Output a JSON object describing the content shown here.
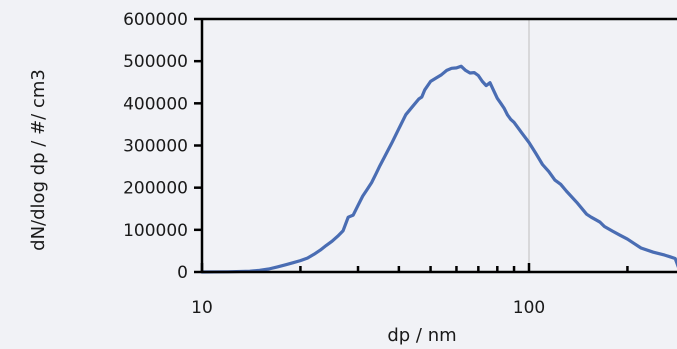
{
  "chart_data": {
    "type": "line",
    "title": "",
    "xlabel": "dp / nm",
    "ylabel": "dN/dlog dp / #/ cm3",
    "x_scale": "log",
    "xlim": [
      10,
      290
    ],
    "ylim": [
      0,
      600000
    ],
    "x_tick_labels": [
      "10",
      "100"
    ],
    "y_tick_labels": [
      "0",
      "100000",
      "200000",
      "300000",
      "400000",
      "500000",
      "600000"
    ],
    "grid": "vertical line at x = 100",
    "legend": "none",
    "colors": {
      "series": "#4a6db3",
      "background": "#f1f2f6",
      "axis": "#000000",
      "grid": "#c8c8c8"
    },
    "series": [
      {
        "x": [
          10,
          12,
          14,
          15,
          16,
          17,
          18,
          19,
          20,
          21,
          22,
          23,
          24,
          25,
          26,
          27,
          28,
          29,
          30,
          31,
          32,
          33,
          34,
          35,
          36,
          37,
          38,
          40,
          42,
          44,
          46,
          47,
          48,
          50,
          52,
          54,
          56,
          58,
          60,
          62,
          64,
          66,
          68,
          70,
          72,
          74,
          76,
          78,
          80,
          82,
          84,
          86,
          88,
          90,
          95,
          100,
          105,
          110,
          115,
          120,
          125,
          130,
          140,
          150,
          155,
          160,
          165,
          170,
          180,
          190,
          200,
          210,
          220,
          240,
          260,
          270,
          280,
          290
        ],
        "y": [
          0,
          500,
          2000,
          4000,
          7000,
          12000,
          17000,
          22000,
          27000,
          33000,
          42000,
          52000,
          63000,
          73000,
          85000,
          98000,
          130000,
          135000,
          158000,
          180000,
          196000,
          212000,
          232000,
          252000,
          270000,
          288000,
          305000,
          340000,
          373000,
          392000,
          410000,
          415000,
          432000,
          452000,
          460000,
          468000,
          478000,
          483000,
          484000,
          488000,
          478000,
          472000,
          473000,
          466000,
          452000,
          442000,
          449000,
          430000,
          412000,
          400000,
          388000,
          372000,
          362000,
          355000,
          330000,
          307000,
          281000,
          255000,
          238000,
          218000,
          208000,
          192000,
          165000,
          137000,
          130000,
          124000,
          118000,
          108000,
          97000,
          87000,
          78000,
          67000,
          57000,
          47000,
          40000,
          36000,
          32000,
          0
        ]
      }
    ]
  }
}
